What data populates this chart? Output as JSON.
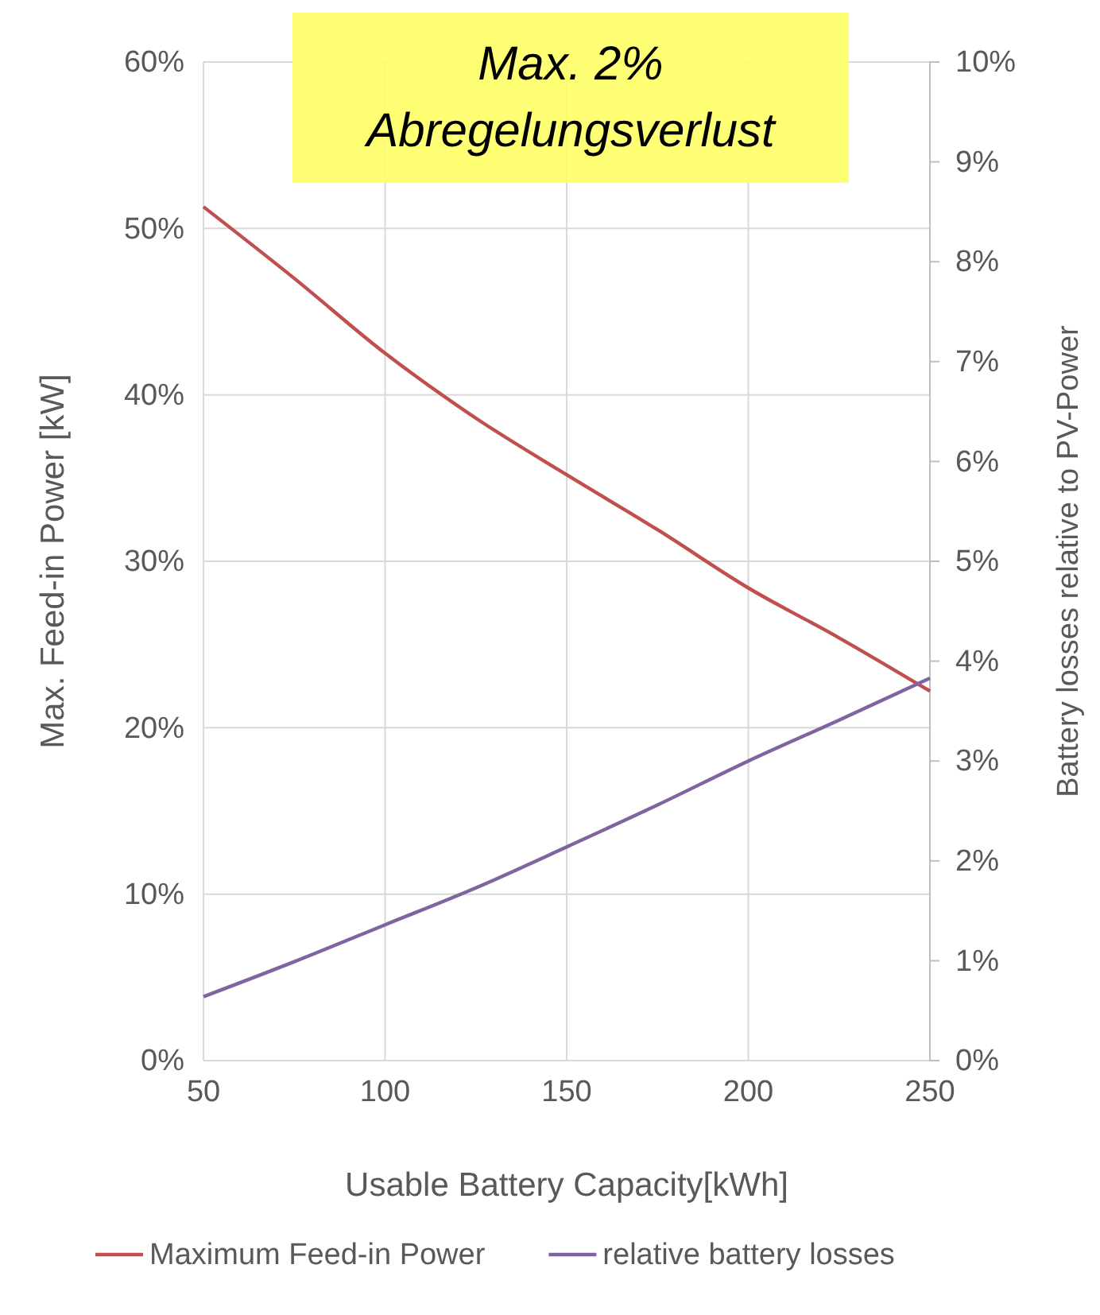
{
  "chart_data": {
    "type": "line",
    "xlabel": "Usable Battery Capacity[kWh]",
    "ylabel": "Max.  Feed-in Power [kW]",
    "y2label": "Battery losses relative to PV-Power",
    "annotations": [
      "Max. 2%\nAbregelungsverlust"
    ],
    "x": [
      50,
      75,
      100,
      125,
      150,
      175,
      200,
      225,
      250
    ],
    "series": [
      {
        "name": "Maximum Feed-in Power",
        "color": "#c0504d",
        "values": [
          51.3,
          47.0,
          42.5,
          38.6,
          35.2,
          31.9,
          28.4,
          25.4,
          22.2
        ]
      },
      {
        "name": "relative battery losses",
        "color": "#8064a2",
        "axis": "y2",
        "values": [
          0.64,
          0.99,
          1.36,
          1.73,
          2.14,
          2.56,
          3.0,
          3.41,
          3.83
        ]
      }
    ],
    "xlim": [
      50,
      250
    ],
    "xticks": [
      50,
      100,
      150,
      200,
      250
    ],
    "ylim": [
      0,
      60
    ],
    "yticks": [
      {
        "value": 0,
        "label": "0%"
      },
      {
        "value": 10,
        "label": "10%"
      },
      {
        "value": 20,
        "label": "20%"
      },
      {
        "value": 30,
        "label": "30%"
      },
      {
        "value": 40,
        "label": "40%"
      },
      {
        "value": 50,
        "label": "50%"
      },
      {
        "value": 60,
        "label": "60%"
      }
    ],
    "y2lim": [
      0,
      10
    ],
    "y2ticks": [
      {
        "value": 0,
        "label": "0%"
      },
      {
        "value": 1,
        "label": "1%"
      },
      {
        "value": 2,
        "label": "2%"
      },
      {
        "value": 3,
        "label": "3%"
      },
      {
        "value": 4,
        "label": "4%"
      },
      {
        "value": 5,
        "label": "5%"
      },
      {
        "value": 6,
        "label": "6%"
      },
      {
        "value": 7,
        "label": "7%"
      },
      {
        "value": 8,
        "label": "8%"
      },
      {
        "value": 9,
        "label": "9%"
      },
      {
        "value": 10,
        "label": "10%"
      }
    ],
    "grid": true,
    "legend": "bottom",
    "marker": "none",
    "line_style": "solid"
  }
}
